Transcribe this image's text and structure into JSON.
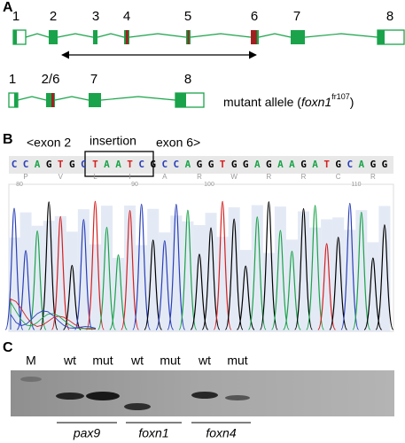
{
  "panel_a": {
    "label": "A",
    "wild_type_exons": [
      "1",
      "2",
      "3",
      "4",
      "5",
      "6",
      "7",
      "8"
    ],
    "mutant_exons": [
      "1",
      "2/6",
      "7",
      "8"
    ],
    "mutant_caption": {
      "prefix": "mutant allele (",
      "gene": "foxn1",
      "allele": "fr107",
      "suffix": ")"
    }
  },
  "panel_b": {
    "label": "B",
    "exon_left": "<exon 2",
    "insertion": "insertion",
    "exon_right": "exon 6>",
    "bases": [
      "C",
      "C",
      "A",
      "G",
      "T",
      "G",
      "C",
      "T",
      "A",
      "A",
      "T",
      "C",
      "G",
      "C",
      "C",
      "A",
      "G",
      "G",
      "T",
      "G",
      "G",
      "A",
      "G",
      "A",
      "A",
      "G",
      "A",
      "T",
      "G",
      "C",
      "A",
      "G",
      "G"
    ],
    "amino_acids": [
      "P",
      "V",
      "L",
      "I",
      "A",
      "R",
      "W",
      "R",
      "R",
      "C",
      "R"
    ],
    "positions": [
      80,
      90,
      100,
      110
    ]
  },
  "panel_c": {
    "label": "C",
    "lanes": [
      "M",
      "wt",
      "mut",
      "wt",
      "mut",
      "wt",
      "mut"
    ],
    "genes": [
      "pax9",
      "foxn1",
      "foxn4"
    ]
  }
}
